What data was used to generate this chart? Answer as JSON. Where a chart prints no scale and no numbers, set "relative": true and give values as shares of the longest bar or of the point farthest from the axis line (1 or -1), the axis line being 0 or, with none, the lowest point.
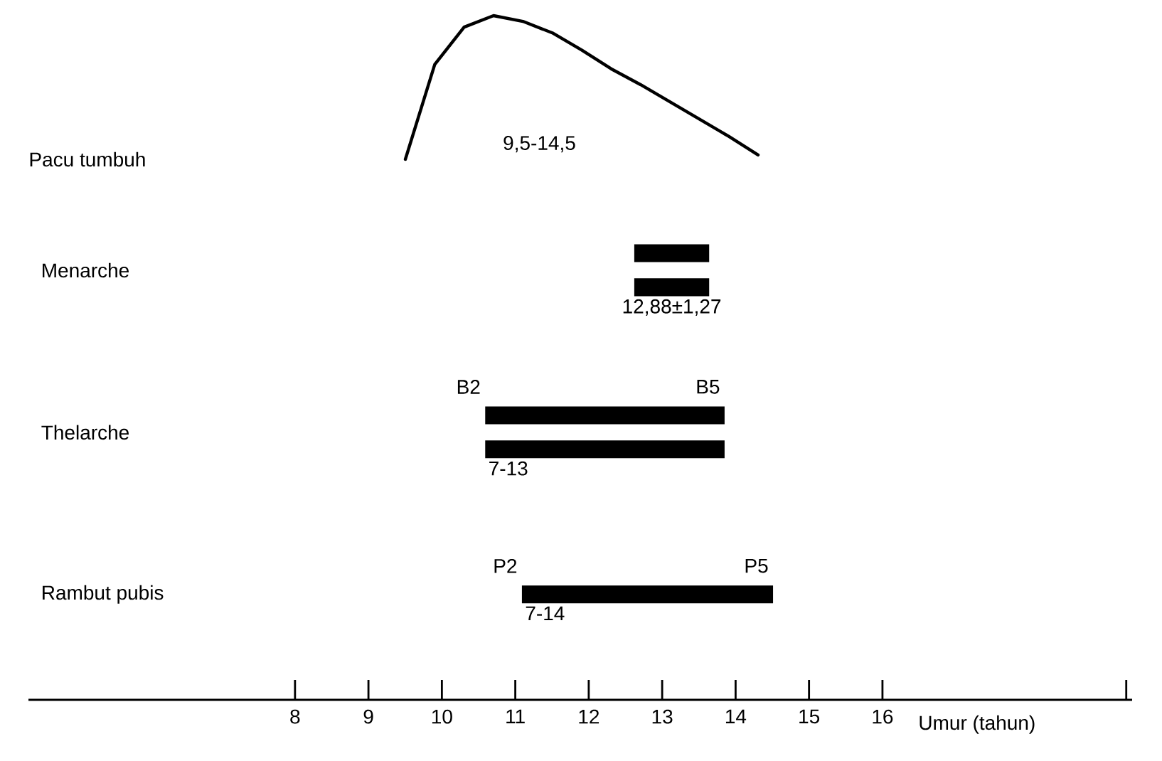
{
  "chart_data": [
    {
      "type": "line",
      "ylabel": "Pacu tumbuh",
      "relative": true,
      "annotations": [
        "9,5-14,5"
      ],
      "categories": [
        null,
        null,
        null,
        null,
        null,
        null,
        null,
        null,
        null,
        null,
        null,
        null,
        null
      ],
      "series": [
        {
          "color": "#000000",
          "values": [
            0,
            0.66,
            0.92,
            1.0,
            0.96,
            0.88,
            0.76,
            0.63,
            0.52,
            0.4,
            0.28,
            0.16,
            0.03
          ]
        }
      ]
    },
    {
      "type": "bar",
      "orientation": "horizontal",
      "categories": [
        "Menarche",
        "Thelarche",
        "Rambut pubis"
      ],
      "xlim": [
        4.37,
        19.4
      ],
      "xticks": [
        8,
        9,
        10,
        11,
        12,
        13,
        14,
        15,
        16,
        {
          "value": 19.32,
          "label": null
        }
      ],
      "xlabel": "Umur (tahun)",
      "grid": false,
      "series": [
        {
          "color": "#000000",
          "values": [
            1.02,
            3.26,
            3.42
          ],
          "base": [
            12.62,
            10.59,
            11.09
          ]
        },
        {
          "color": "#000000",
          "values": [
            1.02,
            3.26,
            null
          ],
          "base": [
            12.62,
            10.59,
            null
          ]
        }
      ],
      "annotations": [
        "12,88±1,27",
        "B2",
        "B5",
        "7-13",
        "P2",
        "P5",
        "7-14"
      ]
    }
  ]
}
